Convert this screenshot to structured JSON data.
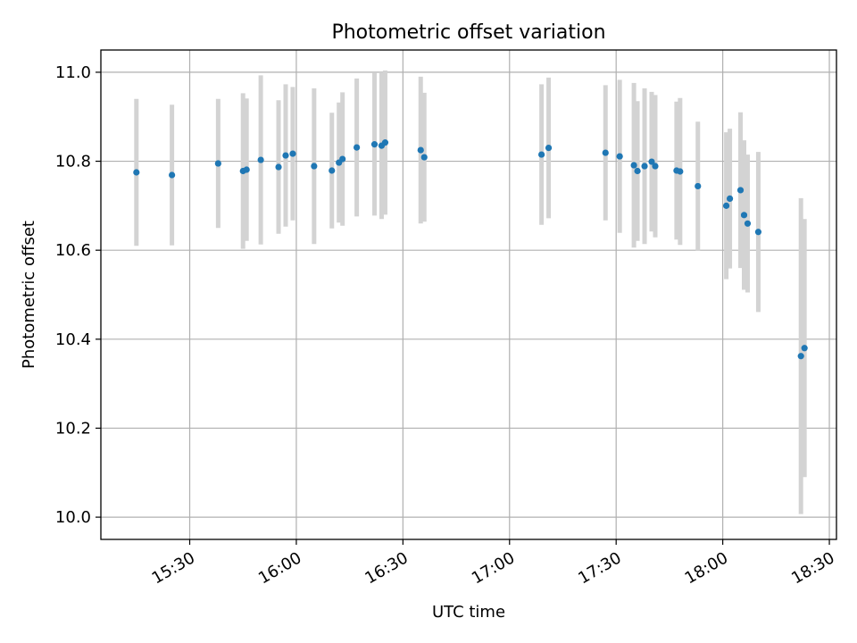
{
  "chart_data": {
    "type": "scatter",
    "title": "Photometric offset variation",
    "xlabel": "UTC time",
    "ylabel": "Photometric offset",
    "xlim": [
      "15:05",
      "18:32"
    ],
    "ylim": [
      9.95,
      11.05
    ],
    "xticks": [
      "15:30",
      "16:00",
      "16:30",
      "17:00",
      "17:30",
      "18:00",
      "18:30"
    ],
    "yticks": [
      "10.0",
      "10.2",
      "10.4",
      "10.6",
      "10.8",
      "11.0"
    ],
    "grid": true,
    "colors": {
      "points": "#1f77b4",
      "errorbars": "#d3d3d3",
      "grid": "#b0b0b0"
    },
    "points": [
      {
        "x": "15:15",
        "y": 10.775,
        "err": 0.165
      },
      {
        "x": "15:25",
        "y": 10.769,
        "err": 0.158
      },
      {
        "x": "15:38",
        "y": 10.795,
        "err": 0.145
      },
      {
        "x": "15:45",
        "y": 10.778,
        "err": 0.175
      },
      {
        "x": "15:46",
        "y": 10.781,
        "err": 0.16
      },
      {
        "x": "15:50",
        "y": 10.803,
        "err": 0.19
      },
      {
        "x": "15:55",
        "y": 10.787,
        "err": 0.15
      },
      {
        "x": "15:57",
        "y": 10.813,
        "err": 0.16
      },
      {
        "x": "15:59",
        "y": 10.817,
        "err": 0.15
      },
      {
        "x": "16:05",
        "y": 10.789,
        "err": 0.175
      },
      {
        "x": "16:10",
        "y": 10.779,
        "err": 0.13
      },
      {
        "x": "16:12",
        "y": 10.797,
        "err": 0.135
      },
      {
        "x": "16:13",
        "y": 10.805,
        "err": 0.15
      },
      {
        "x": "16:17",
        "y": 10.831,
        "err": 0.155
      },
      {
        "x": "16:22",
        "y": 10.838,
        "err": 0.16
      },
      {
        "x": "16:24",
        "y": 10.835,
        "err": 0.165
      },
      {
        "x": "16:25",
        "y": 10.842,
        "err": 0.162
      },
      {
        "x": "16:35",
        "y": 10.825,
        "err": 0.165
      },
      {
        "x": "16:36",
        "y": 10.809,
        "err": 0.145
      },
      {
        "x": "17:09",
        "y": 10.815,
        "err": 0.158
      },
      {
        "x": "17:11",
        "y": 10.83,
        "err": 0.158
      },
      {
        "x": "17:27",
        "y": 10.819,
        "err": 0.152
      },
      {
        "x": "17:31",
        "y": 10.811,
        "err": 0.172
      },
      {
        "x": "17:35",
        "y": 10.791,
        "err": 0.185
      },
      {
        "x": "17:36",
        "y": 10.778,
        "err": 0.157
      },
      {
        "x": "17:38",
        "y": 10.789,
        "err": 0.175
      },
      {
        "x": "17:40",
        "y": 10.799,
        "err": 0.157
      },
      {
        "x": "17:41",
        "y": 10.789,
        "err": 0.16
      },
      {
        "x": "17:47",
        "y": 10.779,
        "err": 0.155
      },
      {
        "x": "17:48",
        "y": 10.777,
        "err": 0.165
      },
      {
        "x": "17:53",
        "y": 10.744,
        "err": 0.145
      },
      {
        "x": "18:01",
        "y": 10.7,
        "err": 0.165
      },
      {
        "x": "18:02",
        "y": 10.716,
        "err": 0.157
      },
      {
        "x": "18:05",
        "y": 10.735,
        "err": 0.175
      },
      {
        "x": "18:06",
        "y": 10.679,
        "err": 0.168
      },
      {
        "x": "18:07",
        "y": 10.66,
        "err": 0.155
      },
      {
        "x": "18:10",
        "y": 10.641,
        "err": 0.18
      },
      {
        "x": "18:22",
        "y": 10.362,
        "err": 0.355
      },
      {
        "x": "18:23",
        "y": 10.38,
        "err": 0.29
      }
    ]
  }
}
